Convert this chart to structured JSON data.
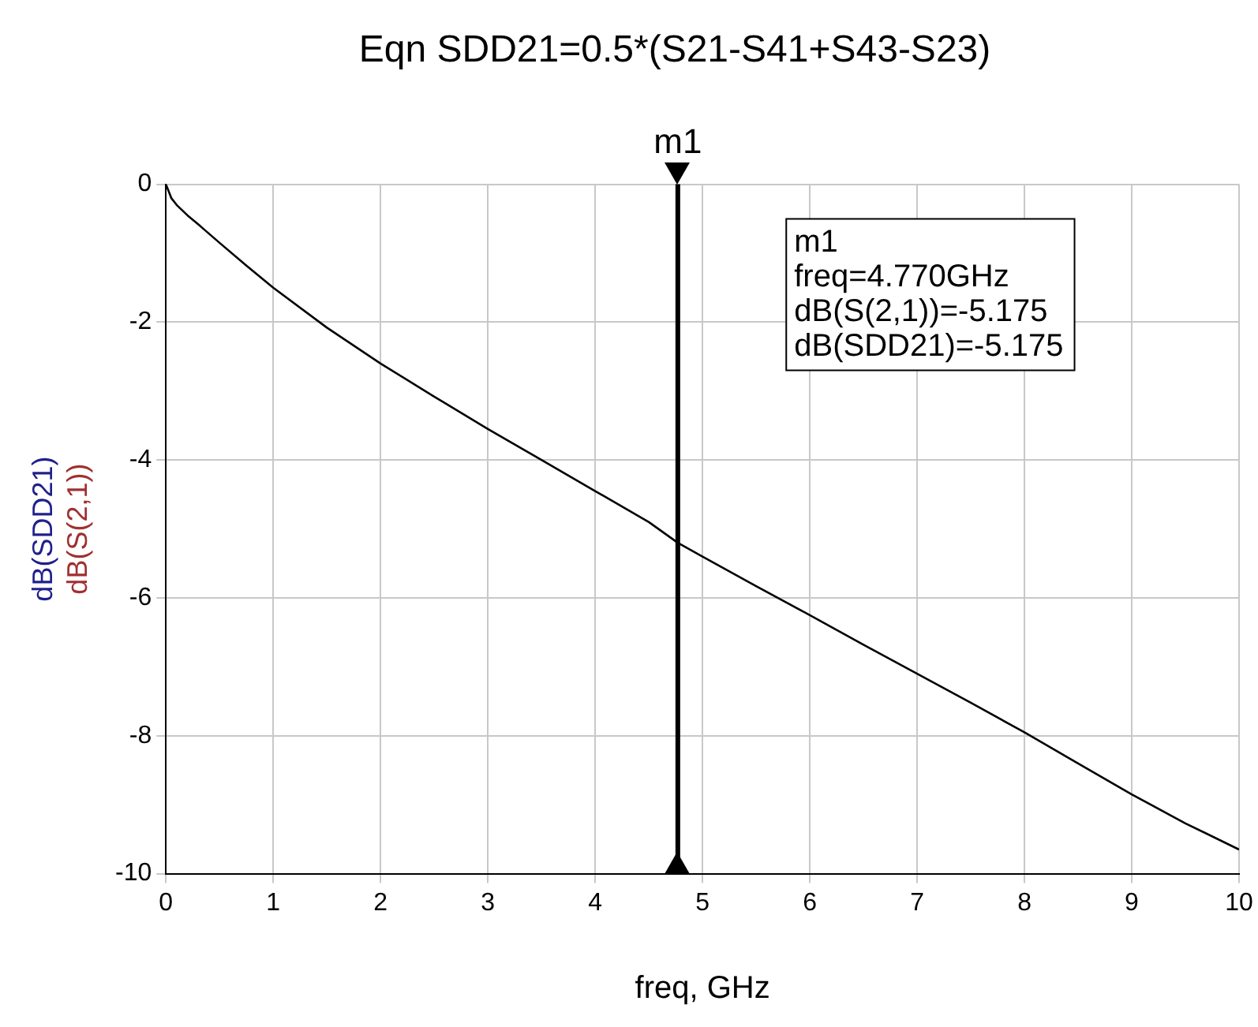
{
  "chart_data": {
    "type": "line",
    "title": "Eqn SDD21=0.5*(S21-S41+S43-S23)",
    "xlabel": "freq, GHz",
    "ylabel": "dB(SDD21)\ndB(S(2,1))",
    "x": [
      0,
      0.05,
      0.1,
      0.2,
      0.3,
      0.5,
      0.75,
      1,
      1.5,
      2,
      2.5,
      3,
      3.5,
      4,
      4.5,
      4.77,
      5,
      5.5,
      6,
      6.5,
      7,
      7.5,
      8,
      8.5,
      9,
      9.5,
      10
    ],
    "series": [
      {
        "color": "#000000",
        "values": [
          0,
          -0.2,
          -0.3,
          -0.45,
          -0.58,
          -0.85,
          -1.18,
          -1.5,
          -2.08,
          -2.6,
          -3.08,
          -3.55,
          -4.0,
          -4.45,
          -4.9,
          -5.2,
          -5.4,
          -5.83,
          -6.25,
          -6.68,
          -7.1,
          -7.52,
          -7.95,
          -8.4,
          -8.85,
          -9.27,
          -9.65
        ]
      }
    ],
    "xlim": [
      0,
      10
    ],
    "xticks": [
      0,
      1,
      2,
      3,
      4,
      5,
      6,
      7,
      8,
      9,
      10
    ],
    "ylim": [
      -10,
      0
    ],
    "yticks": [
      -10,
      -8,
      -6,
      -4,
      -2,
      0
    ],
    "grid": true,
    "legend": false,
    "marker": "none",
    "line_style": "solid",
    "ref_lines": [
      {
        "axis": "x",
        "value": 4.77,
        "label": "m1",
        "color": "#000000"
      }
    ],
    "annotations": [
      "m1",
      "freq=4.770GHz",
      "dB(S(2,1))=-5.175",
      "dB(SDD21)=-5.175"
    ]
  }
}
